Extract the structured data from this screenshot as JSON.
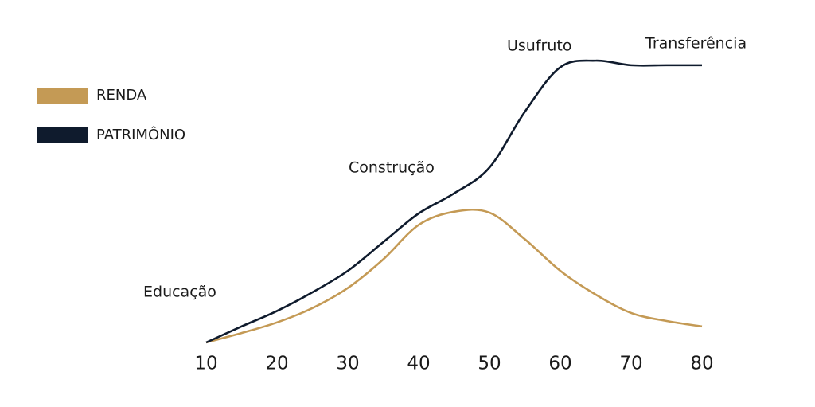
{
  "chart_data": {
    "type": "line",
    "x": [
      10,
      15,
      20,
      25,
      30,
      35,
      40,
      45,
      50,
      55,
      60,
      65,
      70,
      75,
      80
    ],
    "xlim": [
      10,
      80
    ],
    "xticks": [
      10,
      20,
      30,
      40,
      50,
      60,
      70,
      80
    ],
    "ylim": [
      0,
      100
    ],
    "grid": false,
    "legend": "upper left",
    "series": [
      {
        "name": "RENDA",
        "color": "#c49a55",
        "values": [
          0,
          3.3,
          7,
          12,
          19,
          29,
          41,
          45.6,
          45.3,
          36,
          25,
          16.7,
          10.3,
          7.5,
          5.6
        ]
      },
      {
        "name": "PATRIMÔNIO",
        "color": "#0f1b2d",
        "values": [
          0,
          5.6,
          11,
          17.5,
          25,
          35,
          45,
          52,
          61,
          80.5,
          96,
          98.3,
          96.7,
          96.7,
          96.7
        ]
      }
    ],
    "annotations": [
      "Educação",
      "Construção",
      "Usufruto",
      "Transferência"
    ]
  }
}
